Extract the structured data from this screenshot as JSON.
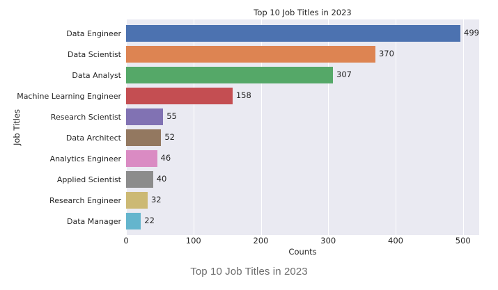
{
  "figure": {
    "caption": "Top 10 Job Titles in 2023"
  },
  "chart_data": {
    "type": "bar",
    "orientation": "horizontal",
    "title": "Top 10 Job Titles in 2023",
    "xlabel": "Counts",
    "ylabel": "Job Titles",
    "categories": [
      "Data Engineer",
      "Data Scientist",
      "Data Analyst",
      "Machine Learning Engineer",
      "Research Scientist",
      "Data Architect",
      "Analytics Engineer",
      "Applied Scientist",
      "Research Engineer",
      "Data Manager"
    ],
    "values": [
      499,
      370,
      307,
      158,
      55,
      52,
      46,
      40,
      32,
      22
    ],
    "bar_colors": [
      "#4c72b0",
      "#dd8452",
      "#55a868",
      "#c44e52",
      "#8172b3",
      "#937860",
      "#da8bc3",
      "#8c8c8c",
      "#ccb974",
      "#64b5cd"
    ],
    "x_ticks": [
      0,
      100,
      200,
      300,
      400,
      500
    ],
    "xlim": [
      0,
      524
    ],
    "grid": true,
    "grid_color": "#ffffff",
    "legend": false,
    "plot_background": "#eaeaf2",
    "value_labels_shown": true
  }
}
